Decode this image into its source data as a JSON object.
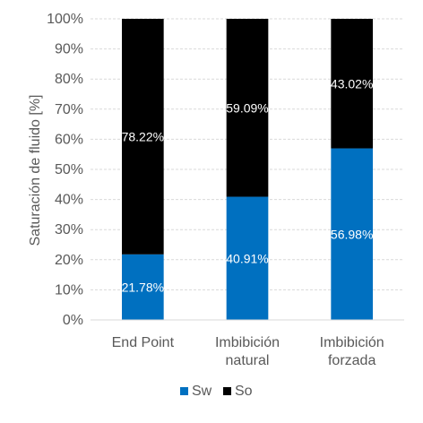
{
  "chart_data": {
    "type": "bar",
    "stacked": true,
    "percent_axis": true,
    "title": "",
    "xlabel": "",
    "ylabel": "Saturación de fluido [%]",
    "ylim": [
      0,
      100
    ],
    "yticks": [
      "0%",
      "10%",
      "20%",
      "30%",
      "40%",
      "50%",
      "60%",
      "70%",
      "80%",
      "90%",
      "100%"
    ],
    "categories": [
      [
        "End Point"
      ],
      [
        "Imbibición",
        "natural"
      ],
      [
        "Imbibición",
        "forzada"
      ]
    ],
    "series": [
      {
        "name": "Sw",
        "color": "#0070C0",
        "values": [
          21.78,
          40.91,
          56.98
        ],
        "labels": [
          "21.78%",
          "40.91%",
          "56.98%"
        ]
      },
      {
        "name": "So",
        "color": "#000000",
        "values": [
          78.22,
          59.09,
          43.02
        ],
        "labels": [
          "78.22%",
          "59.09%",
          "43.02%"
        ]
      }
    ],
    "grid": true,
    "legend": {
      "position": "bottom",
      "entries": [
        "Sw",
        "So"
      ]
    }
  }
}
